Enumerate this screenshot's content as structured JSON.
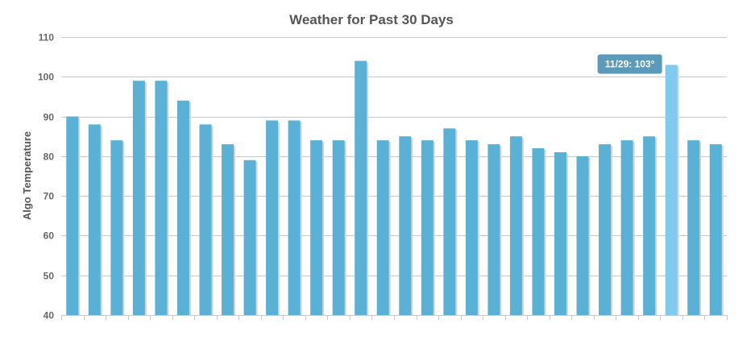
{
  "chart_data": {
    "type": "bar",
    "title": "Weather for Past 30 Days",
    "ylabel": "Algo Temperature",
    "xlabel": "",
    "ylim": [
      40,
      110
    ],
    "yticks": [
      40,
      50,
      60,
      70,
      80,
      90,
      100,
      110
    ],
    "grid": true,
    "values": [
      90,
      88,
      84,
      99,
      99,
      94,
      88,
      83,
      79,
      89,
      89,
      84,
      84,
      104,
      84,
      85,
      84,
      87,
      84,
      83,
      85,
      82,
      81,
      80,
      83,
      84,
      85,
      103,
      84,
      83
    ],
    "highlight_index": 27,
    "tooltip": "11/29: 103°",
    "colors": {
      "bar": "#5ab1d6",
      "bar_highlight": "#7fcbef",
      "bar_shadow": "#d4d4d4",
      "grid": "#c8c8c8",
      "tooltip_bg": "#5b9ab8",
      "tooltip_border": "#ffffff"
    }
  }
}
